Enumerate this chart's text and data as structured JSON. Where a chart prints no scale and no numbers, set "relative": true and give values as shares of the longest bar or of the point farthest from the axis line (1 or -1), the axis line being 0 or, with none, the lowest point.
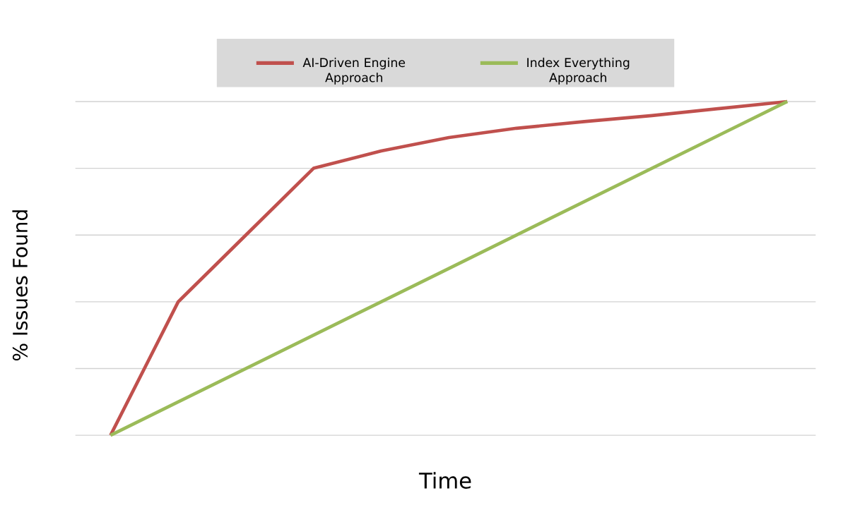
{
  "chart_data": {
    "type": "line",
    "relative": true,
    "xlabel": "Time",
    "ylabel": "% Issues Found",
    "categories": [
      null,
      null,
      null,
      null,
      null,
      null,
      null,
      null,
      null,
      null,
      null
    ],
    "series": [
      {
        "name": "AI-Driven Engine Approach",
        "color": "#c0504d",
        "values": [
          0,
          0.4,
          0.6,
          0.8,
          0.852,
          0.892,
          0.92,
          0.94,
          0.958,
          0.979,
          1
        ]
      },
      {
        "name": "Index Everything Approach",
        "color": "#9bbb59",
        "values": [
          0,
          0.1,
          0.2,
          0.3,
          0.4,
          0.5,
          0.6,
          0.7,
          0.8,
          0.9,
          1
        ]
      }
    ],
    "grid": "y",
    "legend": "top",
    "marker": "none",
    "line_style": "solid"
  }
}
